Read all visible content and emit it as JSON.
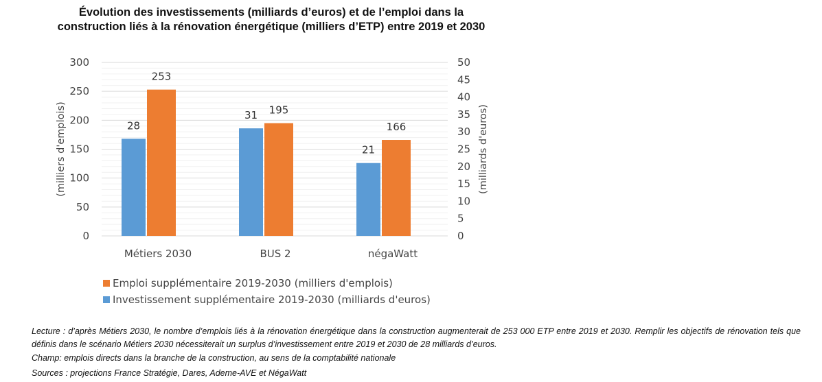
{
  "chart_data": {
    "type": "bar",
    "title_lines": [
      "Évolution des investissements (milliards d’euros) et de l’emploi dans la",
      "construction liés à la rénovation énergétique (milliers d’ETP) entre 2019 et 2030"
    ],
    "categories": [
      "Métiers 2030",
      "BUS 2",
      "négaWatt"
    ],
    "series": [
      {
        "name": "Investissement supplémentaire 2019-2030 (milliards d'euros)",
        "axis": "right",
        "color": "#5b9bd5",
        "values": [
          28,
          31,
          21
        ]
      },
      {
        "name": "Emploi supplémentaire 2019-2030 (milliers d'emplois)",
        "axis": "left",
        "color": "#ed7d31",
        "values": [
          253,
          195,
          166
        ]
      }
    ],
    "ylabel_left": "(milliers d'emplois)",
    "ylabel_right": "(milliards d'euros)",
    "ylim_left": [
      0,
      300
    ],
    "ylim_right": [
      0,
      50
    ],
    "yticks_left": [
      0,
      50,
      100,
      150,
      200,
      250,
      300
    ],
    "yticks_right": [
      0,
      5,
      10,
      15,
      20,
      25,
      30,
      35,
      40,
      45,
      50
    ],
    "grid": true,
    "legend_position": "bottom-left"
  },
  "notes": {
    "lecture": "Lecture : d’après Métiers 2030, le nombre d’emplois liés à la rénovation énergétique dans la construction augmenterait de 253 000 ETP entre 2019 et 2030. Remplir les objectifs de rénovation tels que définis dans le scénario Métiers 2030 nécessiterait un surplus d’investissement entre 2019 et 2030 de 28 milliards d’euros.",
    "champ": "Champ: emplois directs dans la branche de la construction, au sens de la comptabilité nationale",
    "sources": "Sources : projections France Stratégie, Dares, Ademe-AVE et NégaWatt"
  }
}
